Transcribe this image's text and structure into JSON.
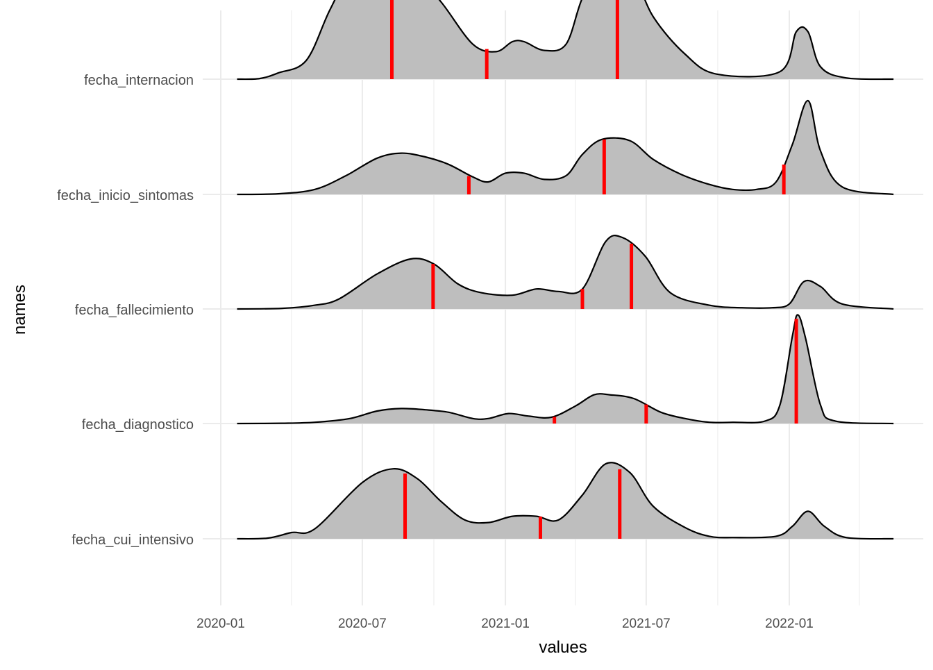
{
  "chart_data": {
    "type": "ridgeline",
    "xlabel": "values",
    "ylabel": "names",
    "x_ticks": [
      "2020-01",
      "2020-07",
      "2021-01",
      "2021-07",
      "2022-01"
    ],
    "x_range": [
      "2020-01-01",
      "2022-05-15"
    ],
    "x_gridlines": [
      "2020-01-01",
      "2020-04-01",
      "2020-07-01",
      "2020-10-01",
      "2021-01-01",
      "2021-04-01",
      "2021-07-01",
      "2021-10-01",
      "2022-01-01",
      "2022-04-01"
    ],
    "grid": true,
    "colors": {
      "fill": "#bebebe",
      "outline": "#000000",
      "marker": "#ff0000",
      "grid": "#ebebeb",
      "text": "#4d4d4d",
      "title": "#000000"
    },
    "series": [
      {
        "name": "fecha_internacion",
        "x": [
          "2020-01-22",
          "2020-02-20",
          "2020-03-15",
          "2020-04-20",
          "2020-05-20",
          "2020-06-20",
          "2020-07-20",
          "2020-08-10",
          "2020-09-05",
          "2020-10-10",
          "2020-11-20",
          "2020-12-20",
          "2021-01-10",
          "2021-01-25",
          "2021-02-20",
          "2021-03-20",
          "2021-04-10",
          "2021-05-05",
          "2021-06-10",
          "2021-07-10",
          "2021-08-20",
          "2021-09-30",
          "2021-12-20",
          "2022-01-10",
          "2022-01-25",
          "2022-02-10",
          "2022-03-15",
          "2022-05-15"
        ],
        "density": [
          0,
          0.005,
          0.05,
          0.15,
          0.55,
          0.9,
          0.98,
          0.94,
          0.85,
          0.62,
          0.28,
          0.22,
          0.3,
          0.3,
          0.23,
          0.28,
          0.65,
          0.9,
          0.88,
          0.5,
          0.2,
          0.04,
          0.06,
          0.38,
          0.38,
          0.1,
          0.01,
          0
        ],
        "markers": [
          "2020-08-08",
          "2020-12-08",
          "2021-05-25"
        ]
      },
      {
        "name": "fecha_inicio_sintomas",
        "x": [
          "2020-01-22",
          "2020-03-15",
          "2020-05-01",
          "2020-06-10",
          "2020-07-20",
          "2020-08-20",
          "2020-09-20",
          "2020-10-20",
          "2020-11-20",
          "2020-12-10",
          "2021-01-01",
          "2021-01-25",
          "2021-02-20",
          "2021-03-20",
          "2021-04-10",
          "2021-05-05",
          "2021-06-10",
          "2021-07-10",
          "2021-08-15",
          "2021-09-20",
          "2021-10-20",
          "2021-11-20",
          "2021-12-15",
          "2022-01-05",
          "2022-01-25",
          "2022-02-10",
          "2022-03-10",
          "2022-05-15"
        ],
        "density": [
          0,
          0.005,
          0.04,
          0.15,
          0.29,
          0.33,
          0.3,
          0.24,
          0.14,
          0.1,
          0.17,
          0.17,
          0.12,
          0.15,
          0.32,
          0.44,
          0.43,
          0.28,
          0.16,
          0.08,
          0.04,
          0.04,
          0.1,
          0.4,
          0.75,
          0.35,
          0.06,
          0
        ],
        "markers": [
          "2020-11-15",
          "2021-05-08",
          "2021-12-25"
        ]
      },
      {
        "name": "fecha_fallecimiento",
        "x": [
          "2020-01-22",
          "2020-03-20",
          "2020-05-01",
          "2020-06-01",
          "2020-07-20",
          "2020-09-01",
          "2020-10-01",
          "2020-11-01",
          "2020-12-01",
          "2021-01-10",
          "2021-02-10",
          "2021-03-10",
          "2021-04-10",
          "2021-05-10",
          "2021-06-01",
          "2021-06-30",
          "2021-08-01",
          "2021-09-20",
          "2021-11-01",
          "2021-12-10",
          "2022-01-01",
          "2022-01-20",
          "2022-02-10",
          "2022-03-10",
          "2022-05-15"
        ],
        "density": [
          0,
          0.005,
          0.03,
          0.08,
          0.28,
          0.4,
          0.36,
          0.2,
          0.13,
          0.11,
          0.16,
          0.14,
          0.16,
          0.54,
          0.57,
          0.42,
          0.13,
          0.03,
          0.01,
          0.01,
          0.04,
          0.22,
          0.18,
          0.04,
          0
        ],
        "markers": [
          "2020-09-30",
          "2021-04-10",
          "2021-06-12"
        ]
      },
      {
        "name": "fecha_diagnostico",
        "x": [
          "2020-01-22",
          "2020-03-20",
          "2020-05-01",
          "2020-06-15",
          "2020-07-20",
          "2020-08-20",
          "2020-09-20",
          "2020-10-20",
          "2020-11-20",
          "2020-12-10",
          "2021-01-05",
          "2021-01-30",
          "2021-03-01",
          "2021-04-01",
          "2021-04-25",
          "2021-05-15",
          "2021-06-15",
          "2021-07-20",
          "2021-08-20",
          "2021-09-20",
          "2021-10-20",
          "2021-12-01",
          "2021-12-20",
          "2022-01-05",
          "2022-01-12",
          "2022-01-22",
          "2022-02-10",
          "2022-03-01",
          "2022-05-15"
        ],
        "density": [
          0,
          0.002,
          0.01,
          0.04,
          0.1,
          0.12,
          0.11,
          0.09,
          0.04,
          0.04,
          0.08,
          0.06,
          0.05,
          0.14,
          0.23,
          0.23,
          0.2,
          0.09,
          0.04,
          0.01,
          0.01,
          0.02,
          0.15,
          0.7,
          0.87,
          0.68,
          0.15,
          0.02,
          0
        ],
        "markers": [
          "2021-03-05",
          "2021-07-01",
          "2022-01-10"
        ]
      },
      {
        "name": "fecha_cui_intensivo",
        "x": [
          "2020-01-22",
          "2020-03-01",
          "2020-04-01",
          "2020-05-01",
          "2020-07-01",
          "2020-08-10",
          "2020-09-10",
          "2020-10-10",
          "2020-11-10",
          "2020-12-10",
          "2021-01-10",
          "2021-02-10",
          "2021-03-10",
          "2021-04-10",
          "2021-05-10",
          "2021-06-10",
          "2021-07-10",
          "2021-08-20",
          "2021-09-20",
          "2021-10-20",
          "2021-12-15",
          "2022-01-05",
          "2022-01-25",
          "2022-02-15",
          "2022-03-15",
          "2022-05-15"
        ],
        "density": [
          0,
          0.005,
          0.05,
          0.08,
          0.45,
          0.56,
          0.48,
          0.3,
          0.15,
          0.13,
          0.18,
          0.18,
          0.15,
          0.35,
          0.6,
          0.53,
          0.26,
          0.09,
          0.02,
          0.01,
          0.02,
          0.1,
          0.22,
          0.1,
          0.01,
          0
        ],
        "markers": [
          "2020-08-25",
          "2021-02-15",
          "2021-05-28"
        ]
      }
    ]
  }
}
